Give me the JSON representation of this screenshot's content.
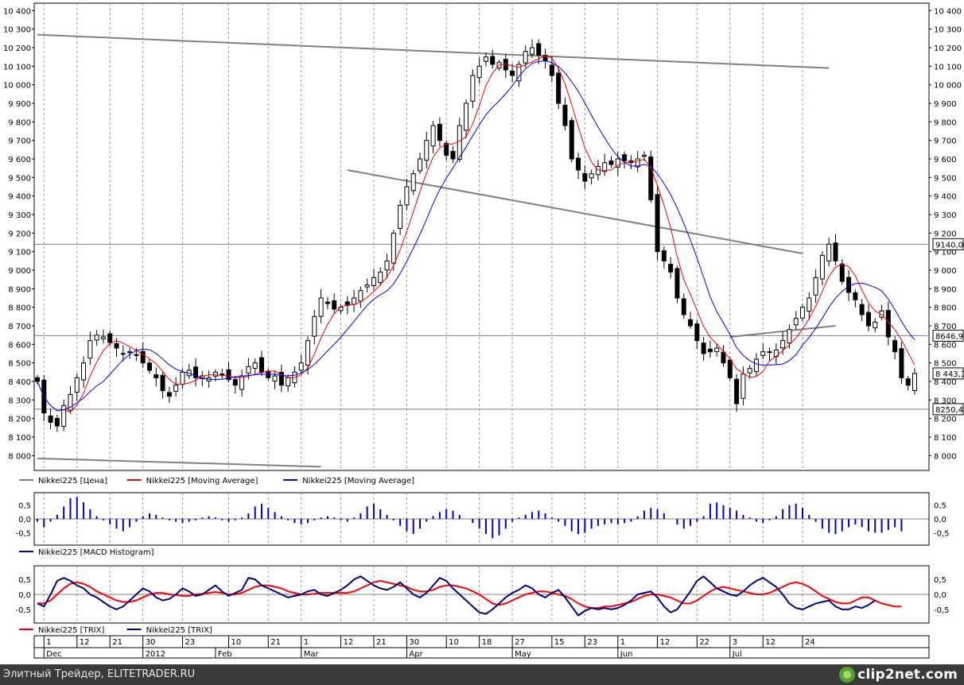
{
  "footer": {
    "text": "Элитный Трейдер, ELITETRADER.RU",
    "logo": "clip2net.com"
  },
  "chart_data": [
    {
      "type": "candlestick",
      "title": "",
      "yticks": [
        8000,
        8100,
        8200,
        8300,
        8400,
        8500,
        8600,
        8700,
        8800,
        8900,
        9000,
        9100,
        9200,
        9300,
        9400,
        9500,
        9600,
        9700,
        9800,
        9900,
        10000,
        10100,
        10200,
        10300,
        10400
      ],
      "ytick_labels": [
        "8 000",
        "8 100",
        "8 200",
        "8 300",
        "8 400",
        "8 500",
        "8 600",
        "8 700",
        "8 800",
        "8 900",
        "9 000",
        "9 100",
        "9 200",
        "9 300",
        "9 400",
        "9 500",
        "9 600",
        "9 700",
        "9 800",
        "9 900",
        "10 000",
        "10 100",
        "10 200",
        "10 300",
        "10 400"
      ],
      "ylim": [
        7920,
        10440
      ],
      "price_tags": [
        {
          "text": "9140,00",
          "value": 9140
        },
        {
          "text": "8646,9",
          "value": 8646.9
        },
        {
          "text": "8 443,1",
          "value": 8443.1
        },
        {
          "text": "8250,4",
          "value": 8250.4
        }
      ],
      "horizontal_levels": [
        9140,
        8646.9,
        8250.4
      ],
      "trendlines": [
        {
          "x": [
            0,
            120
          ],
          "y": [
            10270,
            10090
          ]
        },
        {
          "x": [
            47,
            116
          ],
          "y": [
            9540,
            9090
          ]
        },
        {
          "x": [
            105,
            121
          ],
          "y": [
            8640,
            8700
          ]
        },
        {
          "x": [
            0,
            43
          ],
          "y": [
            7985,
            7940
          ]
        }
      ],
      "legend": [
        {
          "name": "Nikkei225 [Цена]",
          "color": "#808080"
        },
        {
          "name": "Nikkei225 [Moving Average]",
          "color": "#ff0000"
        },
        {
          "name": "Nikkei225 [Moving Average]",
          "color": "#0000ff"
        }
      ],
      "close": [
        8400,
        8230,
        8180,
        8160,
        8270,
        8330,
        8420,
        8500,
        8620,
        8650,
        8640,
        8610,
        8580,
        8550,
        8560,
        8540,
        8500,
        8460,
        8420,
        8350,
        8320,
        8380,
        8450,
        8460,
        8420,
        8430,
        8420,
        8450,
        8440,
        8410,
        8380,
        8430,
        8480,
        8500,
        8450,
        8420,
        8430,
        8380,
        8420,
        8450,
        8500,
        8620,
        8750,
        8850,
        8820,
        8790,
        8800,
        8810,
        8850,
        8890,
        8920,
        8960,
        8990,
        9050,
        9200,
        9350,
        9450,
        9520,
        9600,
        9700,
        9780,
        9700,
        9620,
        9600,
        9780,
        9900,
        10050,
        10100,
        10150,
        10110,
        10120,
        10080,
        10050,
        10110,
        10180,
        10200,
        10160,
        10130,
        10050,
        9900,
        9780,
        9600,
        9540,
        9480,
        9520,
        9560,
        9580,
        9570,
        9600,
        9590,
        9580,
        9600,
        9620,
        9380,
        9100,
        9050,
        8990,
        8850,
        8760,
        8700,
        8620,
        8550,
        8560,
        8580,
        8500,
        8420,
        8280,
        8440,
        8470,
        8520,
        8560,
        8560,
        8570,
        8620,
        8680,
        8740,
        8800,
        8850,
        8960,
        9080,
        9140,
        9050,
        8940,
        8880,
        8840,
        8760,
        8700,
        8720,
        8780,
        8640,
        8560,
        8420,
        8380,
        8443
      ]
    },
    {
      "type": "bar",
      "series": [
        {
          "name": "Nikkei225 [MACD Histogram]",
          "color": "#0000cc"
        }
      ],
      "yticks": [
        -0.5,
        0,
        0.5
      ],
      "ytick_labels": [
        "-0,5",
        "0,0",
        "0,5"
      ],
      "ylim": [
        -0.95,
        0.95
      ],
      "values": [
        -0.1,
        -0.3,
        -0.1,
        0.15,
        0.45,
        0.75,
        0.8,
        0.6,
        0.35,
        0.1,
        -0.05,
        -0.2,
        -0.35,
        -0.45,
        -0.3,
        -0.1,
        0.1,
        0.2,
        0.15,
        0.05,
        -0.05,
        -0.1,
        -0.15,
        -0.1,
        -0.05,
        0.05,
        0.1,
        0.05,
        -0.05,
        -0.1,
        -0.05,
        0.05,
        0.2,
        0.45,
        0.55,
        0.4,
        0.25,
        0.1,
        -0.05,
        -0.15,
        -0.2,
        -0.15,
        -0.05,
        0.05,
        0.1,
        0.05,
        -0.05,
        -0.1,
        0.05,
        0.2,
        0.45,
        0.55,
        0.35,
        0.15,
        -0.05,
        -0.25,
        -0.45,
        -0.55,
        -0.35,
        -0.1,
        0.1,
        0.25,
        0.35,
        0.3,
        0.15,
        0.0,
        -0.15,
        -0.35,
        -0.55,
        -0.7,
        -0.6,
        -0.35,
        -0.1,
        0.05,
        0.15,
        0.25,
        0.3,
        0.2,
        0.05,
        -0.1,
        -0.25,
        -0.45,
        -0.55,
        -0.5,
        -0.35,
        -0.25,
        -0.2,
        -0.15,
        -0.2,
        -0.15,
        -0.1,
        0.1,
        0.3,
        0.4,
        0.35,
        0.2,
        0.0,
        -0.2,
        -0.35,
        -0.25,
        -0.1,
        0.1,
        0.55,
        0.6,
        0.5,
        0.4,
        0.3,
        0.15,
        0.05,
        -0.1,
        -0.15,
        -0.05,
        0.1,
        0.35,
        0.5,
        0.55,
        0.4,
        0.15,
        -0.1,
        -0.35,
        -0.5,
        -0.55,
        -0.45,
        -0.3,
        -0.2,
        -0.3,
        -0.45,
        -0.5,
        -0.5,
        -0.4,
        -0.3,
        -0.45
      ]
    },
    {
      "type": "line",
      "series": [
        {
          "name": "Nikkei225 [TRIX]",
          "color": "#ff0000"
        },
        {
          "name": "Nikkei225 [TRIX]",
          "color": "#000080"
        }
      ],
      "yticks": [
        -0.5,
        0,
        0.5
      ],
      "ytick_labels": [
        "-0,5",
        "0,0",
        "0,5"
      ],
      "ylim": [
        -0.95,
        0.95
      ],
      "trix_signal": [
        -0.3,
        -0.3,
        -0.2,
        0.0,
        0.2,
        0.35,
        0.4,
        0.35,
        0.25,
        0.1,
        0.0,
        -0.1,
        -0.2,
        -0.25,
        -0.25,
        -0.2,
        -0.1,
        0.0,
        0.05,
        0.05,
        0.0,
        -0.02,
        -0.05,
        -0.05,
        0.0,
        0.02,
        0.05,
        0.08,
        0.05,
        0.0,
        0.0,
        0.05,
        0.15,
        0.25,
        0.3,
        0.3,
        0.25,
        0.2,
        0.1,
        0.05,
        0.0,
        0.0,
        0.02,
        0.05,
        0.05,
        0.05,
        0.05,
        0.05,
        0.1,
        0.2,
        0.3,
        0.4,
        0.45,
        0.4,
        0.35,
        0.3,
        0.25,
        0.15,
        0.1,
        0.1,
        0.15,
        0.25,
        0.3,
        0.3,
        0.25,
        0.2,
        0.1,
        0.0,
        -0.15,
        -0.3,
        -0.35,
        -0.3,
        -0.2,
        -0.1,
        0.0,
        0.05,
        0.1,
        0.1,
        0.05,
        0.0,
        -0.05,
        -0.15,
        -0.3,
        -0.4,
        -0.45,
        -0.45,
        -0.4,
        -0.4,
        -0.35,
        -0.3,
        -0.25,
        -0.15,
        -0.05,
        0.0,
        0.0,
        -0.05,
        -0.1,
        -0.2,
        -0.3,
        -0.3,
        -0.2,
        -0.05,
        0.1,
        0.2,
        0.25,
        0.2,
        0.15,
        0.1,
        0.05,
        0.0,
        0.0,
        0.05,
        0.15,
        0.25,
        0.35,
        0.4,
        0.35,
        0.25,
        0.1,
        -0.05,
        -0.15,
        -0.25,
        -0.3,
        -0.3,
        -0.2,
        -0.1,
        -0.1,
        -0.2,
        -0.3,
        -0.35,
        -0.4,
        -0.4
      ],
      "trix": [
        -0.3,
        -0.4,
        0.0,
        0.45,
        0.55,
        0.45,
        0.3,
        0.2,
        0.0,
        -0.1,
        -0.25,
        -0.4,
        -0.5,
        -0.4,
        -0.2,
        0.0,
        0.2,
        0.1,
        -0.1,
        -0.2,
        -0.15,
        0.0,
        0.2,
        0.1,
        -0.05,
        0.0,
        0.15,
        0.3,
        0.1,
        -0.05,
        0.05,
        0.15,
        0.55,
        0.5,
        0.3,
        0.2,
        0.1,
        0.0,
        -0.1,
        -0.05,
        0.0,
        0.1,
        0.15,
        0.0,
        -0.05,
        0.05,
        0.15,
        0.3,
        0.5,
        0.6,
        0.45,
        0.3,
        0.2,
        0.15,
        0.25,
        0.4,
        0.2,
        0.0,
        -0.1,
        0.05,
        0.3,
        0.55,
        0.45,
        0.2,
        0.0,
        -0.2,
        -0.4,
        -0.6,
        -0.65,
        -0.5,
        -0.3,
        -0.1,
        0.05,
        0.15,
        0.3,
        0.2,
        0.0,
        -0.1,
        0.05,
        0.15,
        -0.1,
        -0.4,
        -0.7,
        -0.55,
        -0.45,
        -0.5,
        -0.45,
        -0.5,
        -0.45,
        -0.35,
        -0.2,
        0.0,
        0.05,
        0.1,
        -0.1,
        -0.4,
        -0.6,
        -0.5,
        -0.2,
        0.1,
        0.45,
        0.6,
        0.4,
        0.2,
        0.1,
        0.0,
        -0.05,
        0.1,
        0.3,
        0.45,
        0.55,
        0.4,
        0.25,
        0.0,
        -0.3,
        -0.45,
        -0.5,
        -0.4,
        -0.3,
        -0.25,
        -0.2,
        -0.4,
        -0.5,
        -0.5,
        -0.4,
        -0.45,
        -0.35,
        -0.2
      ]
    }
  ],
  "x_axis": {
    "days": [
      "1",
      "12",
      "21",
      "30",
      "23",
      "10",
      "21",
      "1",
      "12",
      "21",
      "30",
      "10",
      "18",
      "27",
      "15",
      "23",
      "1",
      "12",
      "22",
      "3",
      "12",
      "24"
    ],
    "day_positions": [
      1,
      6,
      11,
      16,
      22,
      29,
      35,
      40,
      46,
      51,
      56,
      62,
      67,
      72,
      78,
      83,
      88,
      94,
      100,
      105,
      110,
      116
    ],
    "months": [
      "Dec",
      "2012",
      "Feb",
      "Mar",
      "Apr",
      "May",
      "Jun",
      "Jul"
    ],
    "month_positions": [
      1,
      16,
      27,
      40,
      56,
      72,
      88,
      105
    ]
  }
}
